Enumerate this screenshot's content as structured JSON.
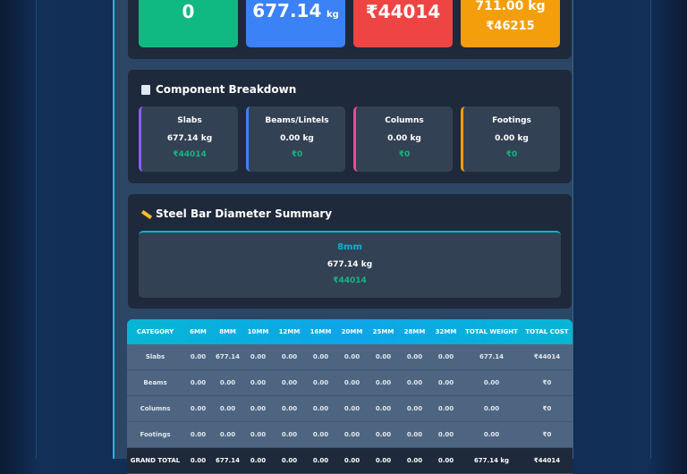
{
  "summary_cards": [
    {
      "value": "0"
    },
    {
      "value": "677.14",
      "unit": "kg"
    },
    {
      "value": "₹44014"
    },
    {
      "value": "711.00 kg",
      "sub": "₹46215"
    }
  ],
  "component_breakdown": {
    "title": "Component Breakdown",
    "items": [
      {
        "name": "Slabs",
        "weight": "677.14 kg",
        "cost": "₹44014"
      },
      {
        "name": "Beams/Lintels",
        "weight": "0.00 kg",
        "cost": "₹0"
      },
      {
        "name": "Columns",
        "weight": "0.00 kg",
        "cost": "₹0"
      },
      {
        "name": "Footings",
        "weight": "0.00 kg",
        "cost": "₹0"
      }
    ]
  },
  "diameter_summary": {
    "title": "Steel Bar Diameter Summary",
    "items": [
      {
        "diameter": "8mm",
        "weight": "677.14 kg",
        "cost": "₹44014"
      }
    ]
  },
  "table": {
    "headers": [
      "CATEGORY",
      "6MM",
      "8MM",
      "10MM",
      "12MM",
      "16MM",
      "20MM",
      "25MM",
      "28MM",
      "32MM",
      "TOTAL WEIGHT",
      "TOTAL COST"
    ],
    "rows": [
      [
        "Slabs",
        "0.00",
        "677.14",
        "0.00",
        "0.00",
        "0.00",
        "0.00",
        "0.00",
        "0.00",
        "0.00",
        "677.14",
        "₹44014"
      ],
      [
        "Beams",
        "0.00",
        "0.00",
        "0.00",
        "0.00",
        "0.00",
        "0.00",
        "0.00",
        "0.00",
        "0.00",
        "0.00",
        "₹0"
      ],
      [
        "Columns",
        "0.00",
        "0.00",
        "0.00",
        "0.00",
        "0.00",
        "0.00",
        "0.00",
        "0.00",
        "0.00",
        "0.00",
        "₹0"
      ],
      [
        "Footings",
        "0.00",
        "0.00",
        "0.00",
        "0.00",
        "0.00",
        "0.00",
        "0.00",
        "0.00",
        "0.00",
        "0.00",
        "₹0"
      ],
      [
        "GRAND TOTAL",
        "0.00",
        "677.14",
        "0.00",
        "0.00",
        "0.00",
        "0.00",
        "0.00",
        "0.00",
        "0.00",
        "677.14 kg",
        "₹44014"
      ]
    ]
  }
}
